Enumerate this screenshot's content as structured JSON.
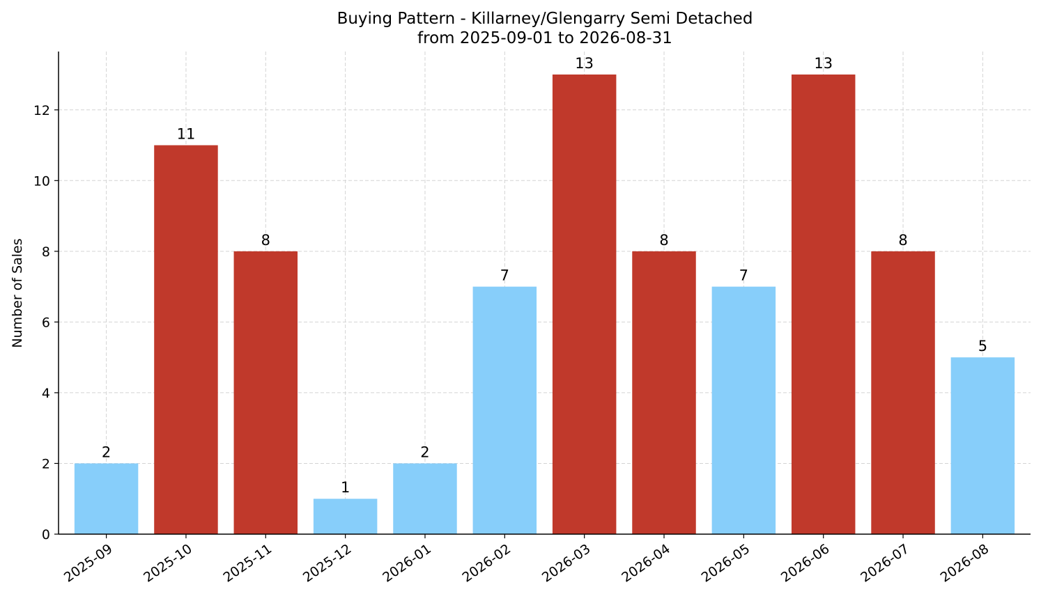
{
  "chart_data": {
    "type": "bar",
    "title": "Buying Pattern - Killarney/Glengarry Semi Detached",
    "subtitle": "from 2025-09-01 to 2026-08-31",
    "xlabel": "",
    "ylabel": "Number of Sales",
    "categories": [
      "2025-09",
      "2025-10",
      "2025-11",
      "2025-12",
      "2026-01",
      "2026-02",
      "2026-03",
      "2026-04",
      "2026-05",
      "2026-06",
      "2026-07",
      "2026-08"
    ],
    "values": [
      2,
      11,
      8,
      1,
      2,
      7,
      13,
      8,
      7,
      13,
      8,
      5
    ],
    "bar_colors": [
      "#87cefa",
      "#c0392b",
      "#c0392b",
      "#87cefa",
      "#87cefa",
      "#87cefa",
      "#c0392b",
      "#c0392b",
      "#87cefa",
      "#c0392b",
      "#c0392b",
      "#87cefa"
    ],
    "yticks": [
      0,
      2,
      4,
      6,
      8,
      10,
      12
    ],
    "ylim": [
      0,
      13.65
    ],
    "grid": true,
    "legend": "none"
  }
}
